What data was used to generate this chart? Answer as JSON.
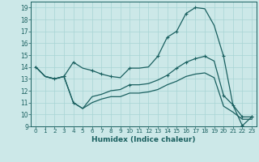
{
  "xlabel": "Humidex (Indice chaleur)",
  "bg_color": "#cce8e8",
  "line_color": "#1a6060",
  "grid_color": "#a8d4d4",
  "xlim": [
    -0.5,
    23.5
  ],
  "ylim": [
    9,
    19.5
  ],
  "xticks": [
    0,
    1,
    2,
    3,
    4,
    5,
    6,
    7,
    8,
    9,
    10,
    11,
    12,
    13,
    14,
    15,
    16,
    17,
    18,
    19,
    20,
    21,
    22,
    23
  ],
  "yticks": [
    9,
    10,
    11,
    12,
    13,
    14,
    15,
    16,
    17,
    18,
    19
  ],
  "line_top_x": [
    0,
    1,
    2,
    3,
    4,
    5,
    6,
    7,
    8,
    9,
    10,
    11,
    12,
    13,
    14,
    15,
    16,
    17,
    18,
    19,
    20,
    21,
    22,
    23
  ],
  "line_top_y": [
    14.0,
    13.2,
    13.0,
    13.2,
    14.4,
    13.9,
    13.7,
    13.4,
    13.2,
    13.1,
    13.9,
    13.9,
    14.0,
    14.9,
    16.5,
    17.0,
    18.5,
    19.0,
    18.9,
    17.5,
    14.9,
    10.8,
    9.05,
    9.8
  ],
  "line_mid_x": [
    0,
    1,
    2,
    3,
    4,
    5,
    6,
    7,
    8,
    9,
    10,
    11,
    12,
    13,
    14,
    15,
    16,
    17,
    18,
    19,
    20,
    21,
    22,
    23
  ],
  "line_mid_y": [
    14.0,
    13.2,
    13.0,
    13.2,
    11.0,
    10.5,
    11.5,
    11.7,
    12.0,
    12.1,
    12.5,
    12.5,
    12.6,
    12.9,
    13.3,
    13.9,
    14.4,
    14.7,
    14.9,
    14.5,
    11.6,
    10.8,
    9.8,
    9.8
  ],
  "line_bot_x": [
    0,
    1,
    2,
    3,
    4,
    5,
    6,
    7,
    8,
    9,
    10,
    11,
    12,
    13,
    14,
    15,
    16,
    17,
    18,
    19,
    20,
    21,
    22,
    23
  ],
  "line_bot_y": [
    14.0,
    13.2,
    13.0,
    13.2,
    11.0,
    10.5,
    11.0,
    11.3,
    11.5,
    11.5,
    11.8,
    11.8,
    11.9,
    12.1,
    12.5,
    12.8,
    13.2,
    13.4,
    13.5,
    13.1,
    10.7,
    10.2,
    9.6,
    9.6
  ],
  "markers_top_x": [
    0,
    2,
    3,
    4,
    6,
    7,
    8,
    10,
    13,
    14,
    15,
    16,
    17,
    20,
    21,
    22,
    23
  ],
  "markers_top_y": [
    14.0,
    13.0,
    13.2,
    14.4,
    13.7,
    13.4,
    13.2,
    13.9,
    14.9,
    16.5,
    17.0,
    18.5,
    19.0,
    14.9,
    10.8,
    9.05,
    9.8
  ],
  "markers_mid_x": [
    3,
    4,
    10,
    14,
    15,
    16,
    17,
    18,
    20,
    22,
    23
  ],
  "markers_mid_y": [
    13.2,
    11.0,
    12.5,
    13.3,
    13.9,
    14.4,
    14.7,
    14.9,
    11.6,
    9.8,
    9.8
  ]
}
